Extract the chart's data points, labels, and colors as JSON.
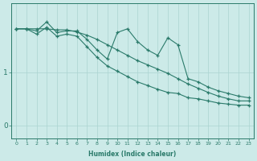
{
  "xlabel": "Humidex (Indice chaleur)",
  "bg_color": "#cceae8",
  "grid_color": "#aad4d0",
  "line_color": "#2a7a6a",
  "x": [
    0,
    1,
    2,
    3,
    4,
    5,
    6,
    7,
    8,
    9,
    10,
    11,
    12,
    13,
    14,
    15,
    16,
    17,
    18,
    19,
    20,
    21,
    22,
    23
  ],
  "line1": [
    1.82,
    1.82,
    1.78,
    1.95,
    1.75,
    1.78,
    1.78,
    1.62,
    1.42,
    1.25,
    1.75,
    1.82,
    1.58,
    1.42,
    1.32,
    1.65,
    1.52,
    0.88,
    0.82,
    0.72,
    0.65,
    0.6,
    0.55,
    0.52
  ],
  "line2": [
    1.82,
    1.82,
    1.72,
    1.85,
    1.68,
    1.72,
    1.68,
    1.48,
    1.28,
    1.12,
    1.02,
    0.92,
    0.82,
    0.75,
    0.68,
    0.62,
    0.6,
    0.52,
    0.5,
    0.46,
    0.42,
    0.4,
    0.38,
    0.38
  ],
  "line3": [
    1.82,
    1.82,
    1.82,
    1.82,
    1.8,
    1.8,
    1.76,
    1.7,
    1.62,
    1.52,
    1.42,
    1.32,
    1.22,
    1.14,
    1.06,
    0.98,
    0.88,
    0.78,
    0.7,
    0.62,
    0.55,
    0.5,
    0.46,
    0.46
  ],
  "ylim": [
    -0.25,
    2.3
  ],
  "yticks": [
    0,
    1
  ],
  "xlim": [
    -0.5,
    23.5
  ],
  "figsize": [
    3.2,
    2.0
  ],
  "dpi": 100
}
